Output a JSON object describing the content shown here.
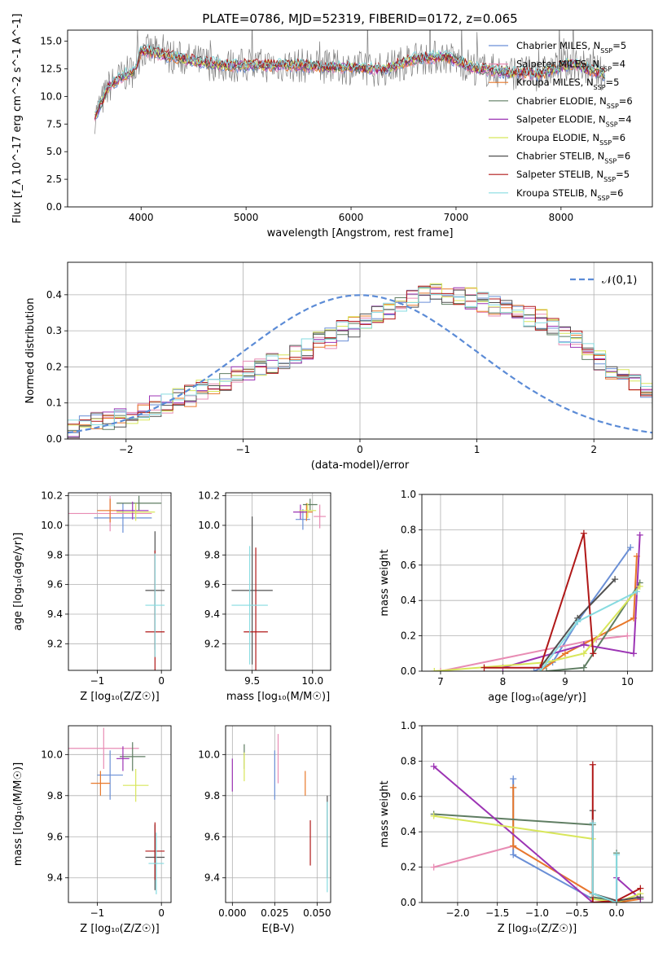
{
  "figure_title": "PLATE=0786, MJD=52319, FIBERID=0172, z=0.065",
  "colors": {
    "chabrier_miles": "#6a8fd6",
    "salpeter_miles": "#e88cb4",
    "kroupa_miles": "#e8782a",
    "chabrier_elodie": "#5f7d62",
    "salpeter_elodie": "#9c34b4",
    "kroupa_elodie": "#d8e65a",
    "chabrier_stelib": "#505050",
    "salpeter_stelib": "#b01818",
    "kroupa_stelib": "#86dbe0",
    "data": "#808080",
    "normal": "#5b8bd6"
  },
  "chart_data": [
    {
      "type": "line",
      "title": "PLATE=0786, MJD=52319, FIBERID=0172, z=0.065",
      "xlabel": "wavelength [Angstrom, rest frame]",
      "ylabel": "Flux [f_λ 10^-17 erg cm^-2 s^-1 A^-1]",
      "xlim": [
        3300,
        8870
      ],
      "ylim": [
        0,
        16
      ],
      "xticks": [
        "4000",
        "5000",
        "6000",
        "7000",
        "8000"
      ],
      "yticks": [
        "0.0",
        "2.5",
        "5.0",
        "7.5",
        "10.0",
        "12.5",
        "15.0"
      ],
      "legend_position": "right",
      "series": [
        {
          "name": "Chabrier MILES, N_SSP=5",
          "n": "5"
        },
        {
          "name": "Salpeter MILES, N_SSP=4",
          "n": "4"
        },
        {
          "name": "Kroupa MILES, N_SSP=5",
          "n": "5"
        },
        {
          "name": "Chabrier ELODIE, N_SSP=6",
          "n": "6"
        },
        {
          "name": "Salpeter ELODIE, N_SSP=4",
          "n": "4"
        },
        {
          "name": "Kroupa ELODIE, N_SSP=6",
          "n": "6"
        },
        {
          "name": "Chabrier STELIB, N_SSP=6",
          "n": "6"
        },
        {
          "name": "Salpeter STELIB, N_SSP=5",
          "n": "5"
        },
        {
          "name": "Kroupa STELIB, N_SSP=6",
          "n": "6"
        }
      ],
      "continuum": {
        "x": [
          3550,
          3700,
          3850,
          3950,
          4000,
          4200,
          4500,
          4800,
          5200,
          5500,
          6000,
          6300,
          6600,
          6900,
          7200,
          7500,
          7800,
          8100,
          8400,
          8700
        ],
        "y": [
          8.0,
          11.0,
          12.0,
          12.5,
          14.2,
          13.8,
          13.2,
          12.8,
          12.8,
          12.8,
          12.6,
          12.4,
          13.4,
          13.6,
          12.5,
          12.2,
          12.0,
          13.0,
          12.0,
          11.0
        ]
      }
    },
    {
      "type": "histogram",
      "xlabel": "(data-model)/error",
      "ylabel": "Normed distribution",
      "xlim": [
        -2.5,
        2.5
      ],
      "ylim": [
        0,
        0.49
      ],
      "xticks": [
        "−2",
        "−1",
        "0",
        "1",
        "2"
      ],
      "yticks": [
        "0.0",
        "0.1",
        "0.2",
        "0.3",
        "0.4"
      ],
      "reference_curve": {
        "name": "𝒩(0,1)",
        "mean": 0,
        "sigma": 1
      },
      "bin_width": 0.1,
      "bin_start": -2.5,
      "base_histogram": [
        0.03,
        0.035,
        0.045,
        0.05,
        0.055,
        0.07,
        0.08,
        0.09,
        0.1,
        0.11,
        0.12,
        0.14,
        0.15,
        0.16,
        0.18,
        0.19,
        0.2,
        0.21,
        0.22,
        0.24,
        0.25,
        0.27,
        0.28,
        0.3,
        0.31,
        0.33,
        0.35,
        0.36,
        0.38,
        0.39,
        0.4,
        0.41,
        0.4,
        0.4,
        0.39,
        0.38,
        0.37,
        0.36,
        0.35,
        0.34,
        0.33,
        0.31,
        0.29,
        0.27,
        0.25,
        0.22,
        0.19,
        0.17,
        0.15,
        0.13,
        0.11,
        0.1,
        0.09,
        0.08,
        0.07,
        0.06,
        0.05,
        0.045,
        0.04,
        0.035,
        0.03,
        0.03,
        0.025,
        0.02,
        0.02,
        0.015,
        0.01,
        0.01,
        0.01,
        0.005
      ]
    },
    {
      "type": "errorbar",
      "xlabel": "Z [log₁₀(Z/Z☉)]",
      "ylabel": "age  [log₁₀(age/yr)]",
      "xlim": [
        -1.45,
        0.15
      ],
      "ylim": [
        9.02,
        10.22
      ],
      "xticks": [
        "−1",
        "0"
      ],
      "yticks": [
        "9.2",
        "9.4",
        "9.6",
        "9.8",
        "10.0",
        "10.2"
      ],
      "points": [
        {
          "x": -0.6,
          "xerr": 0.45,
          "y": 10.05,
          "yerr": 0.1,
          "c": "chabrier_miles"
        },
        {
          "x": -0.8,
          "xerr": 0.65,
          "y": 10.08,
          "yerr": 0.12,
          "c": "salpeter_miles"
        },
        {
          "x": -0.8,
          "xerr": 0.2,
          "y": 10.1,
          "yerr": 0.08,
          "c": "kroupa_miles"
        },
        {
          "x": -0.35,
          "xerr": 0.35,
          "y": 10.15,
          "yerr": 0.05,
          "c": "chabrier_elodie"
        },
        {
          "x": -0.45,
          "xerr": 0.25,
          "y": 10.1,
          "yerr": 0.06,
          "c": "salpeter_elodie"
        },
        {
          "x": -0.4,
          "xerr": 0.3,
          "y": 10.09,
          "yerr": 0.06,
          "c": "kroupa_elodie"
        },
        {
          "x": -0.1,
          "xerr": 0.15,
          "y": 9.56,
          "yerr": 0.4,
          "c": "chabrier_stelib"
        },
        {
          "x": -0.1,
          "xerr": 0.15,
          "y": 9.28,
          "yerr": 0.55,
          "c": "salpeter_stelib"
        },
        {
          "x": -0.1,
          "xerr": 0.15,
          "y": 9.46,
          "yerr": 0.35,
          "c": "kroupa_stelib"
        }
      ]
    },
    {
      "type": "errorbar",
      "xlabel": "mass [log₁₀(M/M☉)]",
      "xlim": [
        9.28,
        10.15
      ],
      "ylim": [
        9.02,
        10.22
      ],
      "xticks": [
        "9.5",
        "10.0"
      ],
      "yticks": [
        "9.2",
        "9.4",
        "9.6",
        "9.8",
        "10.0",
        "10.2"
      ],
      "points": [
        {
          "x": 9.92,
          "xerr": 0.06,
          "y": 10.04,
          "yerr": 0.07,
          "c": "chabrier_miles"
        },
        {
          "x": 10.06,
          "xerr": 0.05,
          "y": 10.06,
          "yerr": 0.08,
          "c": "salpeter_miles"
        },
        {
          "x": 9.95,
          "xerr": 0.05,
          "y": 10.09,
          "yerr": 0.06,
          "c": "kroupa_miles"
        },
        {
          "x": 9.98,
          "xerr": 0.06,
          "y": 10.14,
          "yerr": 0.04,
          "c": "chabrier_elodie"
        },
        {
          "x": 9.9,
          "xerr": 0.06,
          "y": 10.09,
          "yerr": 0.05,
          "c": "salpeter_elodie"
        },
        {
          "x": 9.96,
          "xerr": 0.07,
          "y": 10.1,
          "yerr": 0.05,
          "c": "kroupa_elodie"
        },
        {
          "x": 9.5,
          "xerr": 0.17,
          "y": 9.56,
          "yerr": 0.5,
          "c": "chabrier_stelib"
        },
        {
          "x": 9.53,
          "xerr": 0.1,
          "y": 9.28,
          "yerr": 0.57,
          "c": "salpeter_stelib"
        },
        {
          "x": 9.48,
          "xerr": 0.15,
          "y": 9.46,
          "yerr": 0.4,
          "c": "kroupa_stelib"
        }
      ]
    },
    {
      "type": "line",
      "xlabel": "age  [log₁₀(age/yr)]",
      "ylabel": "mass weight",
      "xlim": [
        6.7,
        10.4
      ],
      "ylim": [
        0,
        1
      ],
      "xticks": [
        "7",
        "8",
        "9",
        "10"
      ],
      "yticks": [
        "0.0",
        "0.2",
        "0.4",
        "0.6",
        "0.8",
        "1.0"
      ],
      "series": [
        {
          "c": "chabrier_miles",
          "x": [
            8.5,
            8.8,
            9.2,
            10.05
          ],
          "y": [
            0.0,
            0.05,
            0.28,
            0.7
          ]
        },
        {
          "c": "salpeter_miles",
          "x": [
            7.0,
            9.5,
            10.0
          ],
          "y": [
            0.0,
            0.18,
            0.2
          ]
        },
        {
          "c": "kroupa_miles",
          "x": [
            8.6,
            9.0,
            10.1,
            10.15
          ],
          "y": [
            0.0,
            0.1,
            0.3,
            0.65
          ]
        },
        {
          "c": "chabrier_elodie",
          "x": [
            8.7,
            9.3,
            10.2
          ],
          "y": [
            0.0,
            0.02,
            0.5
          ]
        },
        {
          "c": "salpeter_elodie",
          "x": [
            8.0,
            9.3,
            10.1,
            10.2
          ],
          "y": [
            0.02,
            0.15,
            0.1,
            0.77
          ]
        },
        {
          "c": "kroupa_elodie",
          "x": [
            6.9,
            8.7,
            9.3,
            10.2
          ],
          "y": [
            0.0,
            0.05,
            0.1,
            0.48
          ]
        },
        {
          "c": "chabrier_stelib",
          "x": [
            8.6,
            9.2,
            9.8
          ],
          "y": [
            0.02,
            0.3,
            0.52
          ]
        },
        {
          "c": "salpeter_stelib",
          "x": [
            7.7,
            8.6,
            9.3,
            9.45
          ],
          "y": [
            0.02,
            0.02,
            0.78,
            0.1
          ]
        },
        {
          "c": "kroupa_stelib",
          "x": [
            8.6,
            9.2,
            10.15
          ],
          "y": [
            0.0,
            0.28,
            0.45
          ]
        }
      ]
    },
    {
      "type": "errorbar",
      "xlabel": "Z [log₁₀(Z/Z☉)]",
      "ylabel": "mass [log₁₀(M/M☉)]",
      "xlim": [
        -1.45,
        0.15
      ],
      "ylim": [
        9.28,
        10.14
      ],
      "xticks": [
        "−1",
        "0"
      ],
      "yticks": [
        "9.4",
        "9.6",
        "9.8",
        "10.0"
      ],
      "points": [
        {
          "x": -0.8,
          "xerr": 0.2,
          "y": 9.9,
          "yerr": 0.12,
          "c": "chabrier_miles"
        },
        {
          "x": -0.9,
          "xerr": 0.55,
          "y": 10.03,
          "yerr": 0.1,
          "c": "salpeter_miles"
        },
        {
          "x": -0.95,
          "xerr": 0.15,
          "y": 9.86,
          "yerr": 0.06,
          "c": "kroupa_miles"
        },
        {
          "x": -0.45,
          "xerr": 0.2,
          "y": 9.99,
          "yerr": 0.07,
          "c": "chabrier_elodie"
        },
        {
          "x": -0.6,
          "xerr": 0.1,
          "y": 9.98,
          "yerr": 0.06,
          "c": "salpeter_elodie"
        },
        {
          "x": -0.4,
          "xerr": 0.2,
          "y": 9.85,
          "yerr": 0.08,
          "c": "kroupa_elodie"
        },
        {
          "x": -0.1,
          "xerr": 0.15,
          "y": 9.5,
          "yerr": 0.16,
          "c": "chabrier_stelib"
        },
        {
          "x": -0.1,
          "xerr": 0.15,
          "y": 9.53,
          "yerr": 0.14,
          "c": "salpeter_stelib"
        },
        {
          "x": -0.08,
          "xerr": 0.12,
          "y": 9.47,
          "yerr": 0.15,
          "c": "kroupa_stelib"
        }
      ]
    },
    {
      "type": "errorbar",
      "xlabel": "E(B-V)",
      "xlim": [
        -0.004,
        0.058
      ],
      "ylim": [
        9.28,
        10.14
      ],
      "xticks": [
        "0.000",
        "0.025",
        "0.050"
      ],
      "yticks": [
        "9.4",
        "9.6",
        "9.8",
        "10.0"
      ],
      "points": [
        {
          "x": 0.025,
          "xerr": 0.0,
          "y": 9.9,
          "yerr": 0.12,
          "c": "chabrier_miles"
        },
        {
          "x": 0.027,
          "xerr": 0.0,
          "y": 9.98,
          "yerr": 0.12,
          "c": "salpeter_miles"
        },
        {
          "x": 0.043,
          "xerr": 0.0,
          "y": 9.86,
          "yerr": 0.06,
          "c": "kroupa_miles"
        },
        {
          "x": 0.007,
          "xerr": 0.0,
          "y": 9.99,
          "yerr": 0.06,
          "c": "chabrier_elodie"
        },
        {
          "x": 0.0,
          "xerr": 0.0,
          "y": 9.9,
          "yerr": 0.08,
          "c": "salpeter_elodie"
        },
        {
          "x": 0.007,
          "xerr": 0.0,
          "y": 9.94,
          "yerr": 0.07,
          "c": "kroupa_elodie"
        },
        {
          "x": 0.056,
          "xerr": 0.0,
          "y": 9.6,
          "yerr": 0.2,
          "c": "chabrier_stelib"
        },
        {
          "x": 0.046,
          "xerr": 0.0,
          "y": 9.57,
          "yerr": 0.11,
          "c": "salpeter_stelib"
        },
        {
          "x": 0.056,
          "xerr": 0.0,
          "y": 9.55,
          "yerr": 0.22,
          "c": "kroupa_stelib"
        }
      ]
    },
    {
      "type": "line",
      "xlabel": "Z [log₁₀(Z/Z☉)]",
      "ylabel": "mass weight",
      "xlim": [
        -2.45,
        0.45
      ],
      "ylim": [
        0,
        1
      ],
      "xticks": [
        "−2.0",
        "−1.5",
        "−1.0",
        "−0.5",
        "0.0"
      ],
      "yticks": [
        "0.0",
        "0.2",
        "0.4",
        "0.6",
        "0.8",
        "1.0"
      ],
      "series": [
        {
          "c": "chabrier_miles",
          "x": [
            -1.3,
            -1.3,
            -0.3,
            0.0,
            0.0
          ],
          "y": [
            0.7,
            0.27,
            0.02,
            0.0,
            0.01
          ]
        },
        {
          "c": "salpeter_miles",
          "x": [
            -2.3,
            -1.3,
            -0.3,
            0.0
          ],
          "y": [
            0.2,
            0.32,
            0.05,
            0.0
          ]
        },
        {
          "c": "kroupa_miles",
          "x": [
            -1.3,
            -1.3,
            -0.3,
            0.0,
            0.3
          ],
          "y": [
            0.65,
            0.32,
            0.05,
            0.0,
            0.02
          ]
        },
        {
          "c": "chabrier_elodie",
          "x": [
            -2.3,
            -0.3,
            -0.3,
            0.0,
            0.0
          ],
          "y": [
            0.5,
            0.44,
            0.03,
            0.01,
            0.28
          ]
        },
        {
          "c": "salpeter_elodie",
          "x": [
            -2.3,
            -0.3,
            0.0,
            0.0,
            0.3
          ],
          "y": [
            0.77,
            0.0,
            0.0,
            0.14,
            0.02
          ]
        },
        {
          "c": "kroupa_elodie",
          "x": [
            -2.3,
            -0.3,
            -0.3,
            0.0,
            0.3
          ],
          "y": [
            0.49,
            0.36,
            0.02,
            0.0,
            0.05
          ]
        },
        {
          "c": "chabrier_stelib",
          "x": [
            -0.3,
            -0.3,
            0.0,
            0.3
          ],
          "y": [
            0.52,
            0.05,
            0.01,
            0.03
          ]
        },
        {
          "c": "salpeter_stelib",
          "x": [
            -0.3,
            -0.3,
            0.0,
            0.3
          ],
          "y": [
            0.78,
            0.0,
            0.01,
            0.08
          ]
        },
        {
          "c": "kroupa_stelib",
          "x": [
            -0.3,
            -0.3,
            0.0,
            0.0
          ],
          "y": [
            0.45,
            0.05,
            0.0,
            0.27
          ]
        }
      ]
    }
  ]
}
